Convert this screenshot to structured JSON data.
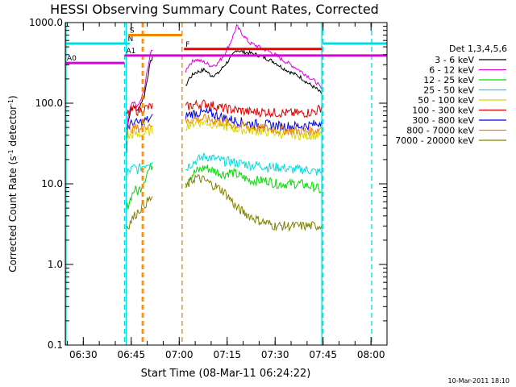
{
  "chart_data": {
    "type": "line",
    "title": "HESSI Observing Summary Count Rates, Corrected",
    "xlabel": "Start Time (08-Mar-11 06:24:22)",
    "ylabel_main": "Corrected Count Rate (s",
    "ylabel_sup1": "-1",
    "ylabel_mid": " detector",
    "ylabel_sup2": "-1",
    "ylabel_end": ")",
    "footer": "10-Mar-2011 18:10",
    "y_scale": "log",
    "ylim": [
      0.1,
      1000
    ],
    "xlim_min": [
      384.37,
      485
    ],
    "y_ticks": [
      {
        "v": 0.1,
        "label": "0.1"
      },
      {
        "v": 1,
        "label": "1.0"
      },
      {
        "v": 10,
        "label": "10.0"
      },
      {
        "v": 100,
        "label": "100.0"
      },
      {
        "v": 1000,
        "label": "1000.0"
      }
    ],
    "x_ticks": [
      {
        "t": 390,
        "label": "06:30"
      },
      {
        "t": 405,
        "label": "06:45"
      },
      {
        "t": 420,
        "label": "07:00"
      },
      {
        "t": 435,
        "label": "07:15"
      },
      {
        "t": 450,
        "label": "07:30"
      },
      {
        "t": 465,
        "label": "07:45"
      },
      {
        "t": 480,
        "label": "08:00"
      }
    ],
    "legend_title": "Det 1,3,4,5,6",
    "legend_position": "right",
    "series": [
      {
        "name": "3 - 6 keV",
        "color": "#000000",
        "x": [
          403.5,
          404,
          405,
          406,
          407,
          408,
          409,
          410,
          411,
          412,
          422,
          423,
          425,
          428,
          430,
          432,
          434,
          436,
          438,
          440,
          442,
          445,
          448,
          450,
          452,
          455,
          458,
          460,
          463,
          464.5
        ],
        "y": [
          24,
          60,
          85,
          90,
          80,
          100,
          120,
          200,
          320,
          410,
          160,
          200,
          240,
          260,
          220,
          230,
          290,
          360,
          460,
          430,
          420,
          390,
          350,
          320,
          280,
          240,
          210,
          180,
          150,
          130
        ]
      },
      {
        "name": "6 - 12 keV",
        "color": "#e000e0",
        "x": [
          403.5,
          404,
          405,
          406,
          407,
          408,
          409,
          410,
          411,
          412,
          422,
          423,
          425,
          428,
          430,
          432,
          434,
          436,
          438,
          440,
          442,
          445,
          448,
          450,
          452,
          455,
          458,
          460,
          463,
          464.5
        ],
        "y": [
          28,
          65,
          95,
          100,
          90,
          110,
          140,
          250,
          420,
          450,
          250,
          300,
          350,
          320,
          290,
          310,
          400,
          560,
          900,
          700,
          560,
          500,
          440,
          400,
          350,
          300,
          250,
          220,
          180,
          150
        ]
      },
      {
        "name": "12 - 25 keV",
        "color": "#00dd00",
        "x": [
          403.5,
          404,
          405,
          406,
          407,
          408,
          409,
          410,
          411,
          412,
          422,
          423,
          425,
          428,
          430,
          432,
          434,
          436,
          438,
          440,
          442,
          445,
          448,
          450,
          452,
          455,
          458,
          460,
          463,
          464.5
        ],
        "y": [
          5,
          5.5,
          7,
          8.5,
          8,
          9,
          11,
          14,
          16,
          18,
          10,
          12,
          14,
          16,
          15,
          14,
          13,
          14,
          13,
          12,
          11,
          11,
          11,
          10,
          10,
          10,
          10,
          9.5,
          9,
          8
        ]
      },
      {
        "name": "25 - 50 keV",
        "color": "#00dddd",
        "x": [
          403.5,
          404,
          405,
          406,
          407,
          408,
          409,
          410,
          411,
          412,
          422,
          423,
          425,
          428,
          430,
          432,
          434,
          436,
          438,
          440,
          442,
          445,
          448,
          450,
          452,
          455,
          458,
          460,
          463,
          464.5
        ],
        "y": [
          12,
          14,
          15,
          16,
          15,
          16,
          17,
          18,
          19,
          20,
          15,
          17,
          19,
          22,
          21,
          20,
          19,
          19,
          18,
          18,
          17,
          17,
          16,
          16,
          16,
          15,
          15,
          15,
          14,
          14
        ]
      },
      {
        "name": "50 - 100 keV",
        "color": "#d8d800",
        "x": [
          403.5,
          404,
          405,
          406,
          407,
          408,
          409,
          410,
          411,
          412,
          422,
          423,
          425,
          428,
          430,
          432,
          434,
          436,
          438,
          440,
          442,
          445,
          448,
          450,
          452,
          455,
          458,
          460,
          463,
          464.5
        ],
        "y": [
          36,
          38,
          40,
          42,
          40,
          41,
          42,
          44,
          45,
          46,
          52,
          54,
          58,
          58,
          56,
          54,
          52,
          50,
          48,
          47,
          46,
          45,
          44,
          43,
          42,
          41,
          40,
          40,
          40,
          42
        ]
      },
      {
        "name": "100 - 300 keV",
        "color": "#dd0000",
        "x": [
          403.5,
          404,
          405,
          406,
          407,
          408,
          409,
          410,
          411,
          412,
          422,
          423,
          425,
          428,
          430,
          432,
          434,
          436,
          438,
          440,
          442,
          445,
          448,
          450,
          452,
          455,
          458,
          460,
          463,
          464.5
        ],
        "y": [
          70,
          75,
          80,
          85,
          80,
          82,
          86,
          88,
          90,
          92,
          88,
          92,
          96,
          98,
          95,
          90,
          86,
          84,
          82,
          80,
          78,
          78,
          78,
          76,
          76,
          75,
          75,
          76,
          80,
          90
        ]
      },
      {
        "name": "300 - 800 keV",
        "color": "#0000ee",
        "x": [
          403.5,
          404,
          405,
          406,
          407,
          408,
          409,
          410,
          411,
          412,
          422,
          423,
          425,
          428,
          430,
          432,
          434,
          436,
          438,
          440,
          442,
          445,
          448,
          450,
          452,
          455,
          458,
          460,
          463,
          464.5
        ],
        "y": [
          48,
          52,
          55,
          58,
          56,
          58,
          60,
          62,
          64,
          66,
          70,
          72,
          76,
          76,
          74,
          70,
          66,
          63,
          60,
          58,
          56,
          55,
          54,
          53,
          52,
          52,
          52,
          53,
          55,
          60
        ]
      },
      {
        "name": "800 - 7000 keV",
        "color": "#ee8800",
        "x": [
          403.5,
          404,
          405,
          406,
          407,
          408,
          409,
          410,
          411,
          412,
          422,
          423,
          425,
          428,
          430,
          432,
          434,
          436,
          438,
          440,
          442,
          445,
          448,
          450,
          452,
          455,
          458,
          460,
          463,
          464.5
        ],
        "y": [
          44,
          46,
          48,
          50,
          48,
          50,
          52,
          54,
          55,
          56,
          58,
          60,
          64,
          64,
          62,
          60,
          57,
          55,
          53,
          52,
          50,
          49,
          48,
          47,
          46,
          46,
          45,
          45,
          46,
          50
        ]
      },
      {
        "name": "7000 - 20000 keV",
        "color": "#808000",
        "x": [
          403.5,
          404,
          405,
          406,
          407,
          408,
          409,
          410,
          411,
          412,
          422,
          423,
          425,
          428,
          430,
          432,
          434,
          436,
          438,
          440,
          442,
          445,
          448,
          450,
          452,
          455,
          458,
          460,
          463,
          464.5
        ],
        "y": [
          3,
          3,
          3.5,
          4,
          4.5,
          5,
          5.5,
          6,
          6.5,
          7,
          9,
          10,
          12,
          11,
          10,
          9,
          8,
          6.5,
          5,
          4.5,
          4,
          3.5,
          3.2,
          3,
          3,
          3,
          3,
          3,
          3,
          3
        ]
      }
    ],
    "vlines": [
      {
        "t": 384.6,
        "color": "#00dddd",
        "style": "solid"
      },
      {
        "t": 402.9,
        "color": "#00dddd",
        "style": "dashed"
      },
      {
        "t": 403.4,
        "color": "#00dddd",
        "style": "solid"
      },
      {
        "t": 408.4,
        "color": "#ee8800",
        "style": "dashed"
      },
      {
        "t": 408.8,
        "color": "#ee8800",
        "style": "dashed"
      },
      {
        "t": 420.9,
        "color": "#ee8800",
        "style": "dashed"
      },
      {
        "t": 464.6,
        "color": "#00dddd",
        "style": "solid"
      },
      {
        "t": 464.9,
        "color": "#00dddd",
        "style": "dashed"
      },
      {
        "t": 480.2,
        "color": "#00dddd",
        "style": "dashed"
      }
    ],
    "hbars": [
      {
        "t0": 384.37,
        "t1": 403.4,
        "y": 550,
        "color": "#00dddd",
        "label": ""
      },
      {
        "t0": 403.4,
        "t1": 404.5,
        "y": 550,
        "color": "#00dddd",
        "label": "N"
      },
      {
        "t0": 465.0,
        "t1": 485,
        "y": 550,
        "color": "#00dddd",
        "label": ""
      },
      {
        "t0": 404.0,
        "t1": 420.9,
        "y": 700,
        "color": "#ee8800",
        "label": "S"
      },
      {
        "t0": 421.5,
        "t1": 464.6,
        "y": 470,
        "color": "#ee0000",
        "label": "F"
      },
      {
        "t0": 384.37,
        "t1": 402.9,
        "y": 315,
        "color": "#dd00dd",
        "label": "A0"
      },
      {
        "t0": 402.9,
        "t1": 485,
        "y": 390,
        "color": "#dd00dd",
        "label": "A1"
      }
    ]
  }
}
